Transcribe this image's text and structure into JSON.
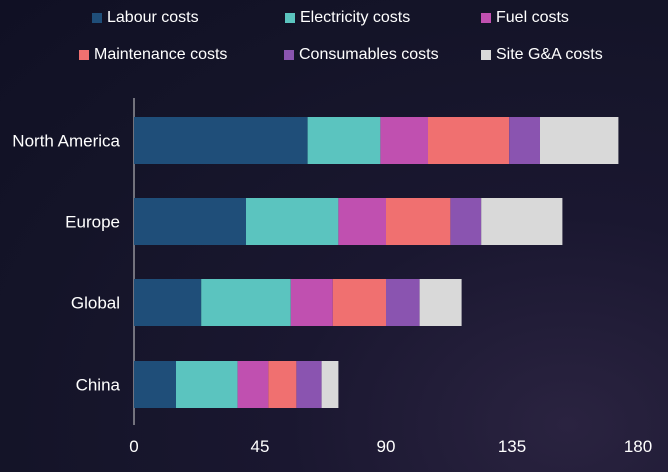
{
  "chart_data": {
    "type": "bar",
    "orientation": "horizontal",
    "stacked": true,
    "categories": [
      "North America",
      "Europe",
      "Global",
      "China"
    ],
    "series": [
      {
        "name": "Labour costs",
        "color": "#1f4e79",
        "values": [
          62,
          40,
          24,
          15
        ]
      },
      {
        "name": "Electricity costs",
        "color": "#5bc4bf",
        "values": [
          26,
          33,
          32,
          22
        ]
      },
      {
        "name": "Fuel costs",
        "color": "#c050b0",
        "values": [
          17,
          17,
          15,
          11
        ]
      },
      {
        "name": "Maintenance costs",
        "color": "#f07070",
        "values": [
          29,
          23,
          19,
          10
        ]
      },
      {
        "name": "Consumables costs",
        "color": "#8a54b0",
        "values": [
          11,
          11,
          12,
          9
        ]
      },
      {
        "name": "Site G&A costs",
        "color": "#d9d9d9",
        "values": [
          28,
          29,
          15,
          6
        ]
      }
    ],
    "xlim": [
      0,
      180
    ],
    "xticks": [
      "0",
      "45",
      "90",
      "135",
      "180"
    ],
    "legend_position": "top",
    "grid": false
  }
}
